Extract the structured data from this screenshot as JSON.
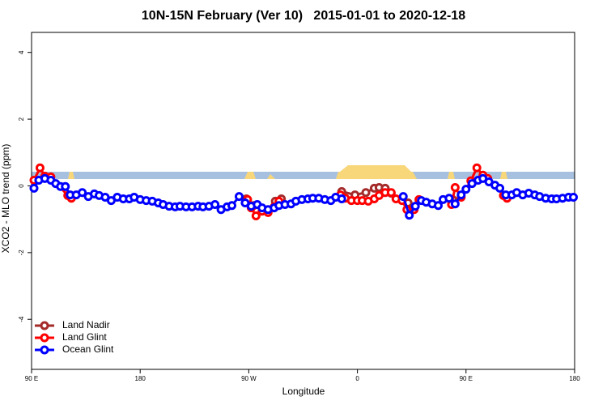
{
  "chart_data": {
    "type": "line",
    "title": "10N-15N February (Ver 10)   2015-01-01 to 2020-12-18",
    "x_label": "Longitude",
    "y_label": "XCO2 - MLO trend (ppm)",
    "xlim": [
      90,
      540
    ],
    "ylim": [
      -5.5,
      4.6
    ],
    "xticks": [
      {
        "value": 90,
        "label": "90 E"
      },
      180,
      {
        "value": 270,
        "label": "90 W"
      },
      {
        "value": 360,
        "label": "0"
      },
      {
        "value": 450,
        "label": "90 E"
      },
      {
        "value": 540,
        "label": "180"
      }
    ],
    "yticks": [
      -4,
      -2,
      0,
      2,
      4
    ],
    "legend": "bottomleft",
    "series": [
      {
        "name": "Land Nadir",
        "color": "#a52a2a",
        "x": [
          268,
          274,
          null,
          292,
          297,
          null,
          347,
          358,
          367,
          374,
          378,
          383,
          388,
          null,
          402,
          407,
          null,
          439
        ],
        "values": [
          -0.39,
          -0.59,
          null,
          -0.46,
          -0.39,
          null,
          -0.17,
          -0.27,
          -0.2,
          -0.07,
          -0.05,
          -0.07,
          -0.22,
          null,
          -0.51,
          -0.63,
          null,
          -0.41
        ]
      },
      {
        "name": "Land Glint",
        "color": "#ff0000",
        "x": [
          92,
          97,
          101,
          106,
          120,
          123,
          null,
          269,
          272,
          276,
          281,
          286,
          291,
          295,
          null,
          346,
          350,
          355,
          360,
          364,
          369,
          374,
          378,
          383,
          388,
          392,
          397,
          401,
          407,
          411,
          null,
          438,
          441,
          446,
          454,
          459,
          464,
          468,
          null,
          481,
          484
        ],
        "values": [
          0.17,
          0.54,
          0.29,
          0.27,
          -0.29,
          -0.37,
          null,
          -0.41,
          -0.66,
          -0.9,
          -0.76,
          -0.8,
          -0.63,
          -0.46,
          null,
          -0.27,
          -0.37,
          -0.44,
          -0.44,
          -0.44,
          -0.46,
          -0.39,
          -0.29,
          -0.2,
          -0.2,
          -0.39,
          -0.44,
          -0.71,
          -0.71,
          -0.41,
          null,
          -0.56,
          -0.05,
          -0.34,
          0.15,
          0.54,
          0.32,
          0.22,
          null,
          -0.29,
          -0.37
        ]
      },
      {
        "name": "Ocean Glint",
        "color": "#0000ff",
        "x": [
          92,
          96,
          101,
          106,
          110,
          114,
          118,
          122,
          127,
          132,
          137,
          142,
          146,
          151,
          156,
          161,
          166,
          171,
          175,
          180,
          185,
          190,
          195,
          199,
          204,
          209,
          213,
          218,
          223,
          228,
          232,
          237,
          242,
          247,
          252,
          256,
          262,
          267,
          272,
          277,
          281,
          286,
          291,
          295,
          300,
          305,
          309,
          314,
          319,
          323,
          328,
          333,
          338,
          342,
          347,
          null,
          398,
          403,
          408,
          413,
          417,
          422,
          427,
          431,
          436,
          441,
          446,
          450,
          455,
          460,
          464,
          469,
          474,
          478,
          483,
          488,
          492,
          497,
          502,
          507,
          511,
          516,
          521,
          525,
          530,
          535,
          539
        ],
        "values": [
          -0.07,
          0.17,
          0.22,
          0.17,
          0.07,
          -0.02,
          -0.02,
          -0.27,
          -0.27,
          -0.2,
          -0.32,
          -0.24,
          -0.29,
          -0.34,
          -0.44,
          -0.34,
          -0.39,
          -0.39,
          -0.34,
          -0.41,
          -0.44,
          -0.46,
          -0.51,
          -0.56,
          -0.61,
          -0.63,
          -0.61,
          -0.63,
          -0.63,
          -0.61,
          -0.63,
          -0.61,
          -0.56,
          -0.71,
          -0.63,
          -0.59,
          -0.32,
          -0.51,
          -0.61,
          -0.56,
          -0.66,
          -0.71,
          -0.66,
          -0.59,
          -0.56,
          -0.54,
          -0.46,
          -0.41,
          -0.39,
          -0.37,
          -0.37,
          -0.41,
          -0.44,
          -0.34,
          -0.39,
          null,
          -0.32,
          -0.88,
          -0.61,
          -0.44,
          -0.49,
          -0.54,
          -0.59,
          -0.41,
          -0.37,
          -0.54,
          -0.27,
          -0.1,
          0.07,
          0.17,
          0.22,
          0.12,
          0.02,
          -0.07,
          -0.27,
          -0.27,
          -0.2,
          -0.27,
          -0.22,
          -0.27,
          -0.32,
          -0.37,
          -0.39,
          -0.39,
          -0.37,
          -0.34,
          -0.34
        ]
      }
    ]
  }
}
